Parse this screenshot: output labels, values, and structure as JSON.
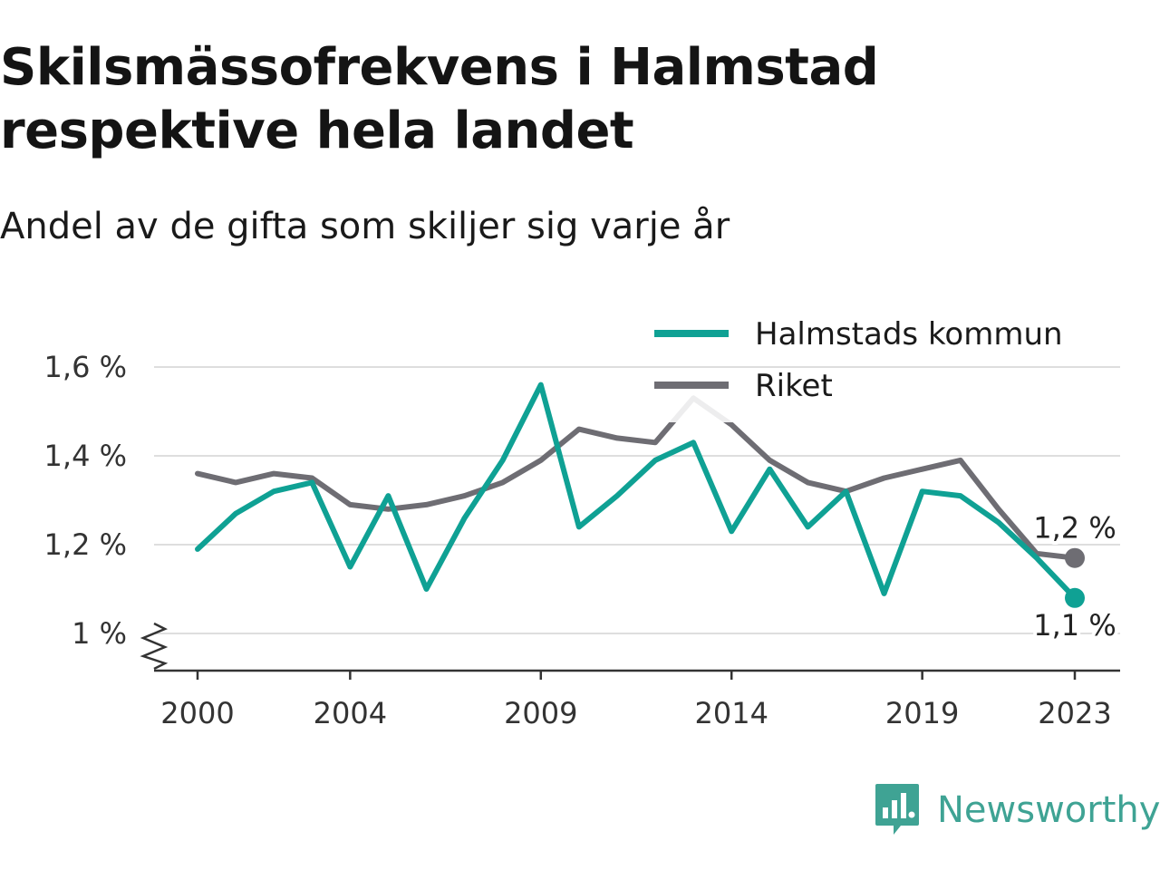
{
  "title": "Skilsmässofrekvens i Halmstad respektive hela landet",
  "subtitle": "Andel av de gifta som skiljer sig varje år",
  "brand": "Newsworthy",
  "colors": {
    "halmstad": "#0fa194",
    "riket": "#6e6d73",
    "grid": "#dedede",
    "axis": "#333333"
  },
  "chart_data": {
    "type": "line",
    "title": "Skilsmässofrekvens i Halmstad respektive hela landet",
    "subtitle": "Andel av de gifta som skiljer sig varje år",
    "x": [
      2000,
      2001,
      2002,
      2003,
      2004,
      2005,
      2006,
      2007,
      2008,
      2009,
      2010,
      2011,
      2012,
      2013,
      2014,
      2015,
      2016,
      2017,
      2018,
      2019,
      2020,
      2021,
      2022,
      2023
    ],
    "x_ticks": [
      2000,
      2004,
      2009,
      2014,
      2019,
      2023
    ],
    "x_tick_labels": [
      "2000",
      "2004",
      "2009",
      "2014",
      "2019",
      "2023"
    ],
    "y_ticks": [
      1.0,
      1.2,
      1.4,
      1.6
    ],
    "y_tick_labels": [
      "1 %",
      "1,2 %",
      "1,4 %",
      "1,6 %"
    ],
    "ylim": [
      0.92,
      1.6
    ],
    "y_axis_break": true,
    "grid": true,
    "legend_position": "top-right",
    "series": [
      {
        "name": "Halmstads kommun",
        "color": "#0fa194",
        "values": [
          1.19,
          1.27,
          1.32,
          1.34,
          1.15,
          1.31,
          1.1,
          1.26,
          1.39,
          1.56,
          1.24,
          1.31,
          1.39,
          1.43,
          1.23,
          1.37,
          1.24,
          1.32,
          1.09,
          1.32,
          1.31,
          1.25,
          1.17,
          1.08
        ],
        "end_label": "1,1 %"
      },
      {
        "name": "Riket",
        "color": "#6e6d73",
        "values": [
          1.36,
          1.34,
          1.36,
          1.35,
          1.29,
          1.28,
          1.29,
          1.31,
          1.34,
          1.39,
          1.46,
          1.44,
          1.43,
          1.53,
          1.47,
          1.39,
          1.34,
          1.32,
          1.35,
          1.37,
          1.39,
          1.28,
          1.18,
          1.17
        ],
        "end_label": "1,2 %"
      }
    ]
  }
}
